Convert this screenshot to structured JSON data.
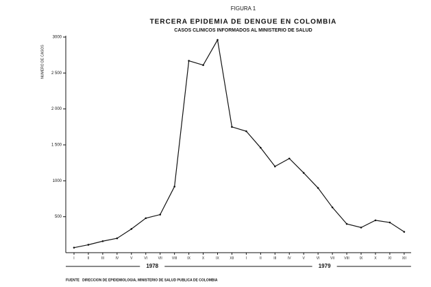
{
  "chart_data": {
    "type": "line",
    "figure_label": "FIGURA 1",
    "title": "TERCERA EPIDEMIA DE DENGUE EN COLOMBIA",
    "subtitle": "CASOS CLINICOS INFORMADOS AL MINISTERIO DE SALUD",
    "y_label": "NUMERO DE CASOS",
    "source": "FUENTE   DIRECCION DE EPIDEMIOLOGIA, MINISTERIO DE SALUD PUBLICA DE COLOMBIA",
    "categories": [
      "I",
      "II",
      "III",
      "IV",
      "V",
      "VI",
      "VII",
      "VIII",
      "IX",
      "X",
      "IX",
      "XII",
      "I",
      "II",
      "III",
      "IV",
      "V",
      "VI",
      "VII",
      "VIII",
      "IX",
      "X",
      "XI",
      "XII"
    ],
    "year_groups": [
      "1978",
      "1979"
    ],
    "series": [
      {
        "color": "#111111",
        "values": [
          70,
          110,
          160,
          200,
          330,
          480,
          530,
          920,
          2670,
          2610,
          2960,
          1750,
          1690,
          1460,
          1200,
          1310,
          1110,
          900,
          630,
          400,
          350,
          450,
          420,
          290
        ]
      }
    ],
    "ylim": [
      0,
      3000
    ],
    "yticks": [
      500,
      {
        "value": 1000,
        "label": "1000"
      },
      {
        "value": 1500,
        "label": "1 500"
      },
      {
        "value": 2000,
        "label": "2 000"
      },
      {
        "value": 2500,
        "label": "2 500"
      },
      3000
    ]
  }
}
